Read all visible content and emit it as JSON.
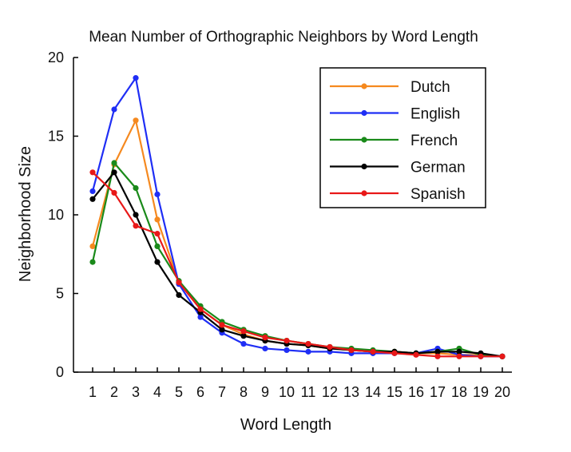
{
  "chart_data": {
    "type": "line",
    "title": "Mean Number of Orthographic Neighbors by Word Length",
    "xlabel": "Word Length",
    "ylabel": "Neighborhood Size",
    "x": [
      1,
      2,
      3,
      4,
      5,
      6,
      7,
      8,
      9,
      10,
      11,
      12,
      13,
      14,
      15,
      16,
      17,
      18,
      19,
      20
    ],
    "ylim": [
      0,
      20
    ],
    "yticks": [
      0,
      5,
      10,
      15,
      20
    ],
    "grid": false,
    "legend_position": "top-right",
    "series": [
      {
        "name": "Dutch",
        "color": "#f5891f",
        "values": [
          8.0,
          13.2,
          16.0,
          9.7,
          5.7,
          4.0,
          3.0,
          2.4,
          2.0,
          1.8,
          1.7,
          1.5,
          1.4,
          1.3,
          1.3,
          1.2,
          1.2,
          1.1,
          1.1,
          1.0
        ]
      },
      {
        "name": "English",
        "color": "#1f2ef5",
        "values": [
          11.5,
          16.7,
          18.7,
          11.3,
          5.6,
          3.5,
          2.5,
          1.8,
          1.5,
          1.4,
          1.3,
          1.3,
          1.2,
          1.2,
          1.2,
          1.2,
          1.5,
          1.1,
          1.0,
          1.0
        ]
      },
      {
        "name": "French",
        "color": "#1a8a1a",
        "values": [
          7.0,
          13.3,
          11.7,
          8.0,
          5.8,
          4.2,
          3.2,
          2.7,
          2.3,
          2.0,
          1.8,
          1.6,
          1.5,
          1.4,
          1.3,
          1.2,
          1.3,
          1.5,
          1.1,
          1.0
        ]
      },
      {
        "name": "German",
        "color": "#000000",
        "values": [
          11.0,
          12.7,
          10.0,
          7.0,
          4.9,
          3.8,
          2.7,
          2.3,
          2.0,
          1.8,
          1.7,
          1.5,
          1.4,
          1.3,
          1.3,
          1.2,
          1.3,
          1.3,
          1.2,
          1.0
        ]
      },
      {
        "name": "Spanish",
        "color": "#e81818",
        "values": [
          12.7,
          11.4,
          9.3,
          8.8,
          5.7,
          4.0,
          3.0,
          2.6,
          2.2,
          2.0,
          1.8,
          1.6,
          1.4,
          1.3,
          1.2,
          1.1,
          1.0,
          1.0,
          1.0,
          1.0
        ]
      }
    ]
  }
}
